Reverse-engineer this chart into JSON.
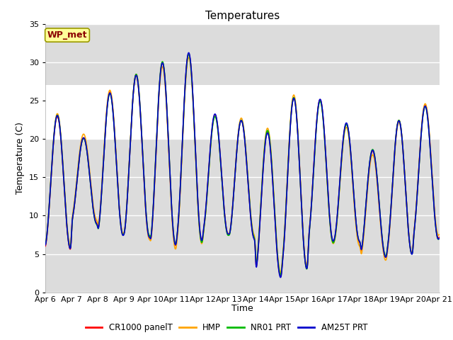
{
  "title": "Temperatures",
  "ylabel": "Temperature (C)",
  "xlabel": "Time",
  "ylim": [
    0,
    35
  ],
  "yticks": [
    0,
    5,
    10,
    15,
    20,
    25,
    30,
    35
  ],
  "x_labels": [
    "Apr 6",
    "Apr 7",
    "Apr 8",
    "Apr 9",
    "Apr 10",
    "Apr 11",
    "Apr 12",
    "Apr 13",
    "Apr 14",
    "Apr 15",
    "Apr 16",
    "Apr 17",
    "Apr 18",
    "Apr 19",
    "Apr 20",
    "Apr 21"
  ],
  "annotation_text": "WP_met",
  "annotation_color": "#8B0000",
  "annotation_bg": "#FFFF99",
  "series_names": [
    "CR1000 panelT",
    "HMP",
    "NR01 PRT",
    "AM25T PRT"
  ],
  "series_colors": [
    "#FF0000",
    "#FFA500",
    "#00BB00",
    "#0000CC"
  ],
  "series_lw": [
    1.2,
    1.2,
    1.2,
    1.2
  ],
  "shaded_bg": "#DCDCDC",
  "shaded_white": [
    20,
    27
  ],
  "title_fontsize": 11,
  "label_fontsize": 9,
  "tick_fontsize": 8
}
